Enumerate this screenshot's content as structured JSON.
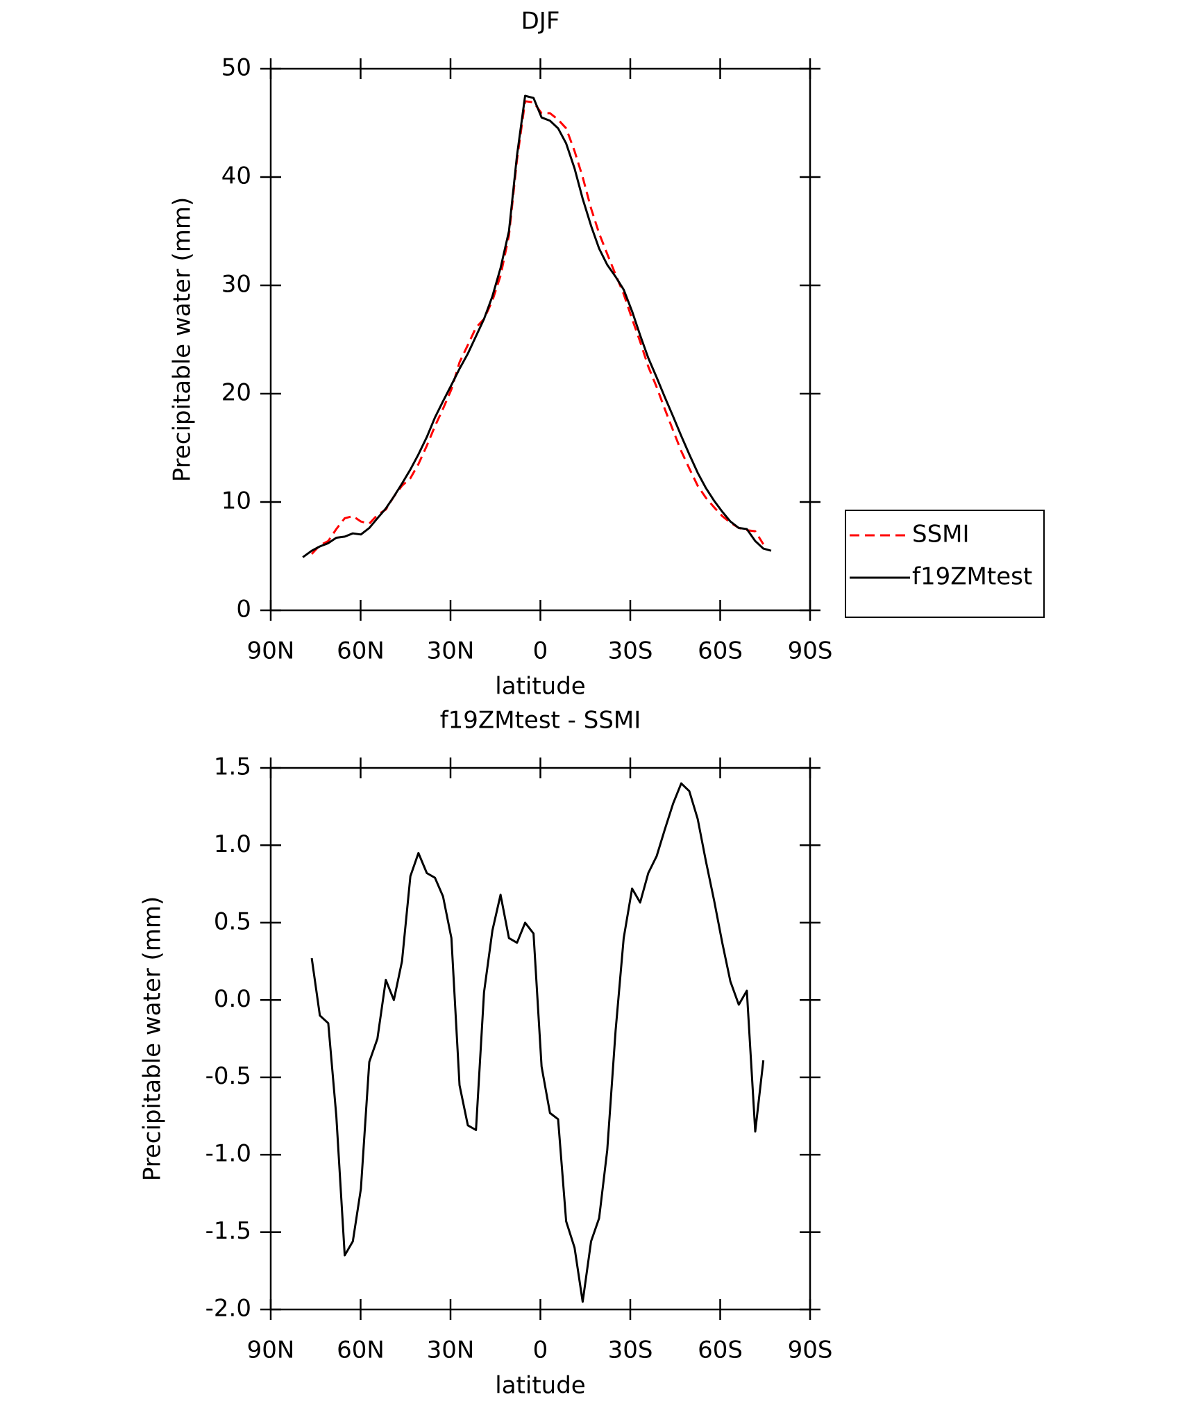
{
  "chart_data": [
    {
      "type": "line",
      "title": "DJF",
      "xlabel": "latitude",
      "ylabel": "Precipitable water (mm)",
      "x": [
        79.3,
        76.3,
        73.6,
        70.8,
        68.1,
        65.3,
        62.6,
        59.9,
        57.1,
        54.4,
        51.6,
        48.9,
        46.2,
        43.4,
        40.7,
        37.9,
        35.2,
        32.5,
        29.7,
        27.0,
        24.2,
        21.5,
        18.8,
        16.0,
        13.3,
        10.5,
        7.8,
        5.1,
        2.3,
        -0.4,
        -3.2,
        -5.9,
        -8.6,
        -11.4,
        -14.1,
        -16.9,
        -19.6,
        -22.3,
        -25.1,
        -27.8,
        -30.6,
        -33.3,
        -36.0,
        -38.8,
        -41.5,
        -44.3,
        -47.0,
        -49.7,
        -52.5,
        -55.2,
        -58.0,
        -60.7,
        -63.4,
        -66.2,
        -68.9,
        -71.7,
        -74.4,
        -77.0
      ],
      "series": [
        {
          "name": "SSMI",
          "color": "#ff0000",
          "dash": true,
          "values": [
            null,
            5.2,
            6.0,
            6.4,
            7.5,
            8.5,
            8.7,
            8.2,
            8.0,
            8.8,
            9.3,
            10.5,
            11.5,
            12.2,
            13.5,
            15.2,
            17.0,
            18.6,
            20.4,
            22.9,
            24.5,
            26.1,
            26.9,
            28.6,
            30.9,
            34.6,
            41.6,
            47.0,
            46.9,
            45.9,
            45.9,
            45.3,
            44.5,
            42.4,
            40.0,
            37.1,
            34.8,
            32.9,
            31.0,
            29.2,
            26.9,
            24.8,
            22.5,
            20.6,
            18.6,
            16.6,
            14.7,
            13.1,
            11.5,
            10.4,
            9.5,
            8.7,
            8.1,
            7.6,
            7.4,
            7.3,
            6.1,
            null
          ]
        },
        {
          "name": "f19ZMtest",
          "color": "#000000",
          "dash": false,
          "values": [
            4.9,
            5.5,
            5.9,
            6.2,
            6.7,
            6.8,
            7.1,
            7.0,
            7.6,
            8.5,
            9.4,
            10.5,
            11.7,
            13.0,
            14.4,
            16.0,
            17.8,
            19.3,
            20.8,
            22.3,
            23.7,
            25.3,
            26.9,
            29.0,
            31.6,
            35.0,
            42.0,
            47.5,
            47.3,
            45.5,
            45.2,
            44.5,
            43.1,
            40.8,
            38.0,
            35.5,
            33.4,
            31.9,
            30.8,
            29.6,
            27.6,
            25.4,
            23.3,
            21.5,
            19.7,
            17.9,
            16.1,
            14.4,
            12.7,
            11.3,
            10.1,
            9.1,
            8.2,
            7.6,
            7.5,
            6.4,
            5.7,
            5.5
          ]
        }
      ],
      "xlim": [
        90,
        -90
      ],
      "xticks": [
        {
          "value": 90,
          "label": "90N"
        },
        {
          "value": 60,
          "label": "60N"
        },
        {
          "value": 30,
          "label": "30N"
        },
        0,
        {
          "value": -30,
          "label": "30S"
        },
        {
          "value": -60,
          "label": "60S"
        },
        {
          "value": -90,
          "label": "90S"
        }
      ],
      "ylim": [
        0,
        50
      ],
      "yticks": [
        0,
        10,
        20,
        30,
        40,
        50
      ],
      "legend": "outside right"
    },
    {
      "type": "line",
      "title": "f19ZMtest - SSMI",
      "xlabel": "latitude",
      "ylabel": "Precipitable water (mm)",
      "x": [
        76.3,
        73.6,
        70.8,
        68.1,
        65.3,
        62.6,
        59.9,
        57.1,
        54.4,
        51.6,
        48.9,
        46.2,
        43.4,
        40.7,
        37.9,
        35.2,
        32.5,
        29.7,
        27.0,
        24.2,
        21.5,
        18.8,
        16.0,
        13.3,
        10.5,
        7.8,
        5.1,
        2.3,
        -0.4,
        -3.2,
        -5.9,
        -8.6,
        -11.4,
        -14.1,
        -16.9,
        -19.6,
        -22.3,
        -25.1,
        -27.8,
        -30.6,
        -33.3,
        -36.0,
        -38.8,
        -41.5,
        -44.3,
        -47.0,
        -49.7,
        -52.5,
        -55.2,
        -58.0,
        -60.7,
        -63.4,
        -66.2,
        -68.9,
        -71.7,
        -74.4
      ],
      "series": [
        {
          "color": "#000000",
          "dash": false,
          "values": [
            0.27,
            -0.1,
            -0.15,
            -0.75,
            -1.65,
            -1.56,
            -1.22,
            -0.4,
            -0.25,
            0.13,
            0.0,
            0.25,
            0.8,
            0.95,
            0.82,
            0.79,
            0.67,
            0.4,
            -0.55,
            -0.81,
            -0.84,
            0.05,
            0.45,
            0.68,
            0.4,
            0.37,
            0.5,
            0.43,
            -0.43,
            -0.73,
            -0.77,
            -1.43,
            -1.6,
            -1.95,
            -1.56,
            -1.41,
            -0.97,
            -0.2,
            0.4,
            0.72,
            0.63,
            0.82,
            0.93,
            1.1,
            1.27,
            1.4,
            1.35,
            1.17,
            0.9,
            0.64,
            0.37,
            0.12,
            -0.03,
            0.06,
            -0.85,
            -0.39
          ]
        }
      ],
      "xlim": [
        90,
        -90
      ],
      "xticks": [
        {
          "value": 90,
          "label": "90N"
        },
        {
          "value": 60,
          "label": "60N"
        },
        {
          "value": 30,
          "label": "30N"
        },
        0,
        {
          "value": -30,
          "label": "30S"
        },
        {
          "value": -60,
          "label": "60S"
        },
        {
          "value": -90,
          "label": "90S"
        }
      ],
      "ylim": [
        -2.0,
        1.5
      ],
      "yticks": [
        1.5,
        {
          "value": 1.0,
          "label": "1.0"
        },
        0.5,
        {
          "value": 0.0,
          "label": "0.0"
        },
        -0.5,
        {
          "value": -1.0,
          "label": "-1.0"
        },
        -1.5,
        {
          "value": -2.0,
          "label": "-2.0"
        }
      ]
    }
  ]
}
